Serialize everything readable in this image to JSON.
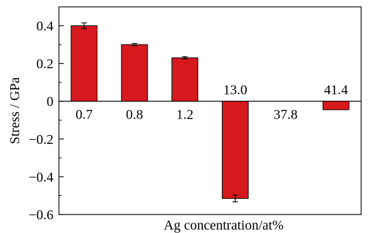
{
  "chart_data": {
    "type": "bar",
    "categories": [
      "0.7",
      "0.8",
      "1.2",
      "13.0",
      "37.8",
      "41.4"
    ],
    "values": [
      0.4,
      0.3,
      0.23,
      -0.515,
      0.0,
      -0.045
    ],
    "errors": [
      0.015,
      0.006,
      0.006,
      0.018,
      0.0,
      0.0
    ],
    "xlabel": "Ag concentration/at%",
    "ylabel": "Stress / GPa",
    "ylim": [
      -0.6,
      0.5
    ],
    "yticks": [
      -0.6,
      -0.4,
      -0.2,
      0,
      0.2,
      0.4
    ],
    "ytick_labels": [
      "−0.6",
      "−0.4",
      "−0.2",
      "0",
      "0.2",
      "0.4"
    ],
    "grid": false,
    "bar_color": "#d7181c"
  }
}
